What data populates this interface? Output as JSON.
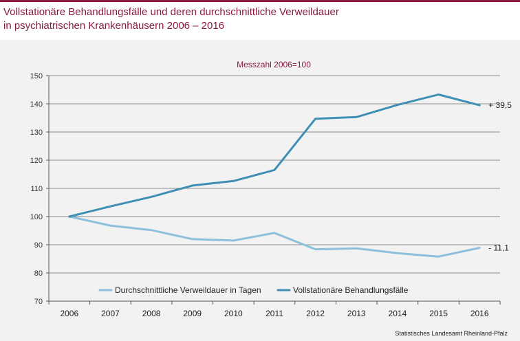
{
  "title_line1": "Vollstationäre Behandlungsfälle und deren durchschnittliche Verweildauer",
  "title_line2": "in psychiatrischen Krankenhäusern 2006 – 2016",
  "source": "Statistisches Landesamt Rheinland-Pfalz",
  "colors": {
    "title": "#8b1a3c",
    "cases": "#3f8fb5",
    "duration": "#8cc0dc",
    "grid": "#8c8c8c",
    "background": "#f2f2f2"
  },
  "chart_data": {
    "type": "line",
    "subtitle": "Messzahl 2006=100",
    "categories": [
      "2006",
      "2007",
      "2008",
      "2009",
      "2010",
      "2011",
      "2012",
      "2013",
      "2014",
      "2015",
      "2016"
    ],
    "ylim": [
      70,
      150
    ],
    "yticks": [
      "150",
      "140",
      "130",
      "120",
      "110",
      "100",
      "90",
      "80",
      "70"
    ],
    "grid": true,
    "legend_position": "bottom-left",
    "series": [
      {
        "name": "Durchschnittliche Verweildauer in Tagen",
        "values": [
          100,
          96.8,
          95.2,
          92.0,
          91.5,
          94.2,
          88.4,
          88.7,
          87.0,
          85.8,
          88.9
        ],
        "end_label": "- 11,1"
      },
      {
        "name": "Vollstationäre Behandlungsfälle",
        "values": [
          100,
          103.6,
          107.0,
          111.0,
          112.6,
          116.5,
          134.7,
          135.3,
          139.6,
          143.3,
          139.5
        ],
        "end_label": "+ 39,5"
      }
    ]
  }
}
